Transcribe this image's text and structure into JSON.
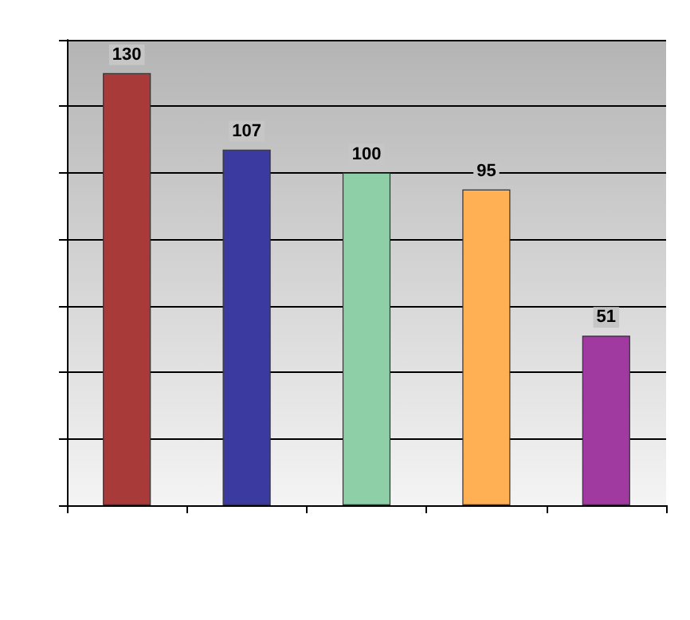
{
  "chart_data": {
    "type": "bar",
    "categories": [
      null,
      null,
      null,
      null,
      null
    ],
    "values": [
      130,
      107,
      100,
      95,
      51
    ],
    "colors": [
      "#a83a3a",
      "#3a3aa0",
      "#8fcfa8",
      "#ffb054",
      "#a03aa0"
    ],
    "ylim": [
      0,
      140
    ],
    "yticks": [
      {
        "value": 0,
        "label": null
      },
      {
        "value": 20,
        "label": null
      },
      {
        "value": 40,
        "label": null
      },
      {
        "value": 60,
        "label": null
      },
      {
        "value": 80,
        "label": null
      },
      {
        "value": 100,
        "label": null
      },
      {
        "value": 120,
        "label": null
      },
      {
        "value": 140,
        "label": null
      }
    ],
    "grid": "y",
    "data_labels": true
  }
}
